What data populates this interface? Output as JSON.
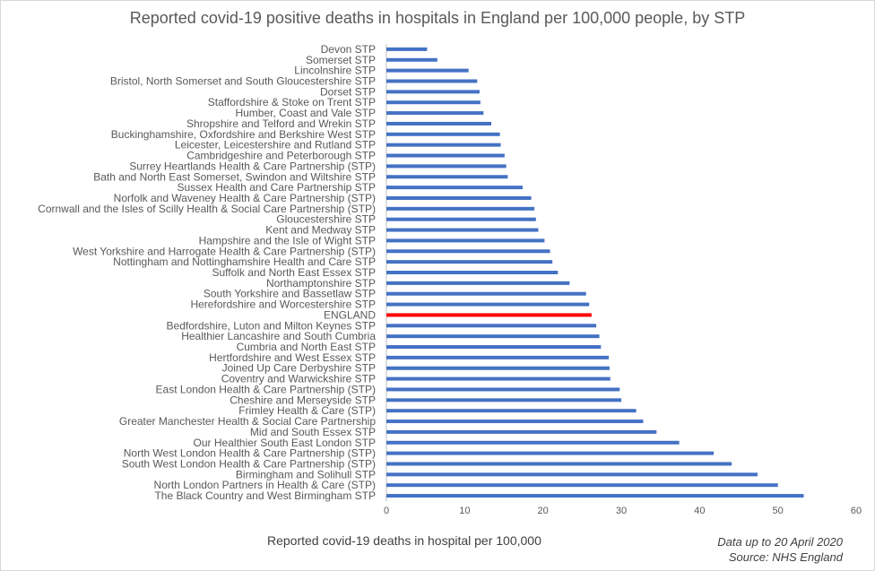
{
  "chart_data": {
    "type": "bar",
    "orientation": "horizontal",
    "title": "Reported covid-19 positive deaths in hospitals in England per 100,000 people, by STP",
    "xlabel": "Reported covid-19 deaths in hospital per 100,000",
    "ylabel": "",
    "xlim": [
      0,
      60
    ],
    "xticks": [
      0,
      10,
      20,
      30,
      40,
      50,
      60
    ],
    "grid": false,
    "bar_color": "#4472c4",
    "highlight_color": "#ff0000",
    "highlight_category": "ENGLAND",
    "categories": [
      "Devon STP",
      "Somerset STP",
      "Lincolnshire STP",
      "Bristol, North Somerset and South Gloucestershire STP",
      "Dorset STP",
      "Staffordshire & Stoke on Trent STP",
      "Humber, Coast and Vale STP",
      "Shropshire and Telford and Wrekin STP",
      "Buckinghamshire, Oxfordshire and Berkshire West STP",
      "Leicester, Leicestershire and Rutland STP",
      "Cambridgeshire and Peterborough STP",
      "Surrey Heartlands Health & Care Partnership (STP)",
      "Bath and North East Somerset, Swindon and Wiltshire STP",
      "Sussex Health and Care Partnership STP",
      "Norfolk and Waveney Health & Care Partnership (STP)",
      "Cornwall and the Isles of Scilly Health & Social Care Partnership (STP)",
      "Gloucestershire STP",
      "Kent and Medway STP",
      "Hampshire and the Isle of Wight STP",
      "West Yorkshire and Harrogate Health & Care Partnership (STP)",
      "Nottingham and Nottinghamshire Health and Care STP",
      "Suffolk and North East Essex STP",
      "Northamptonshire STP",
      "South Yorkshire and Bassetlaw STP",
      "Herefordshire and Worcestershire STP",
      "ENGLAND",
      "Bedfordshire, Luton and Milton Keynes STP",
      "Healthier Lancashire and South Cumbria",
      "Cumbria and North East STP",
      "Hertfordshire and West Essex STP",
      "Joined Up Care Derbyshire STP",
      "Coventry and Warwickshire STP",
      "East London Health & Care Partnership (STP)",
      "Cheshire and Merseyside STP",
      "Frimley Health & Care (STP)",
      "Greater Manchester Health & Social Care Partnership",
      "Mid and South Essex STP",
      "Our Healthier South East London STP",
      "North West London Health & Care Partnership (STP)",
      "South West London Health & Care Partnership (STP)",
      "Birmingham and Solihull STP",
      "North London Partners in Health & Care (STP)",
      "The Black Country and West Birmingham STP"
    ],
    "values": [
      5.2,
      6.5,
      10.5,
      11.6,
      11.9,
      12.0,
      12.4,
      13.4,
      14.5,
      14.6,
      15.1,
      15.3,
      15.5,
      17.4,
      18.5,
      18.9,
      19.1,
      19.4,
      20.2,
      20.9,
      21.2,
      21.9,
      23.4,
      25.5,
      25.9,
      26.2,
      26.8,
      27.2,
      27.4,
      28.4,
      28.5,
      28.6,
      29.8,
      30.0,
      31.9,
      32.8,
      34.5,
      37.4,
      41.8,
      44.1,
      47.4,
      50.0,
      53.3
    ]
  },
  "notes": {
    "date_line": "Data up to 20  April 2020",
    "source_line": "Source: NHS England"
  }
}
